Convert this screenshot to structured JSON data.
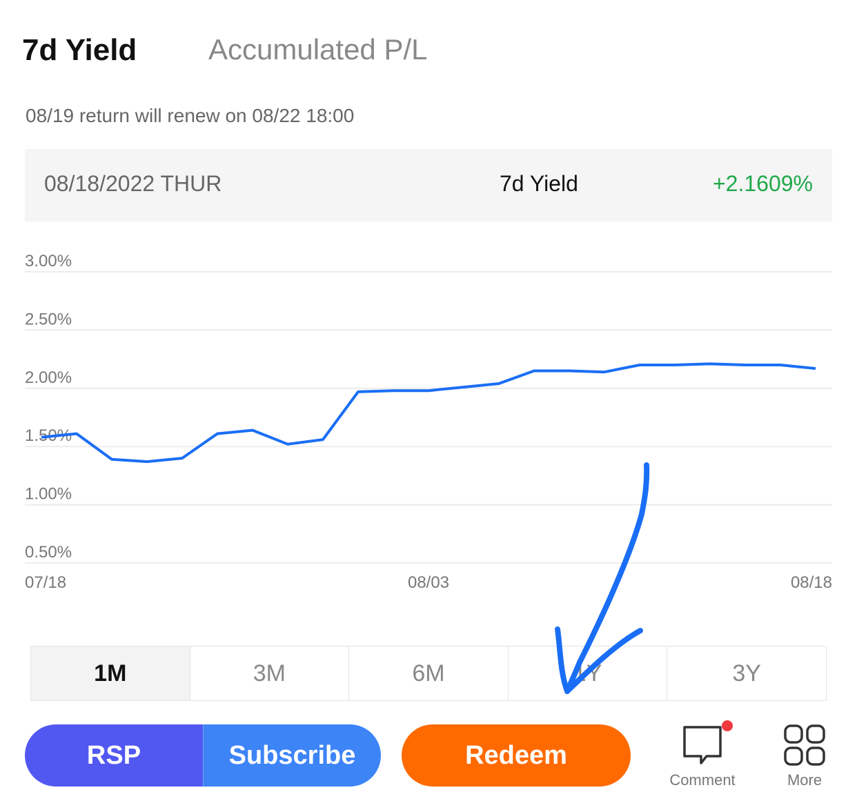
{
  "tabs": {
    "active": "7d Yield",
    "inactive": "Accumulated P/L"
  },
  "notice": "08/19 return will renew on 08/22 18:00",
  "infobar": {
    "date": "08/18/2022 THUR",
    "label": "7d Yield",
    "value": "+2.1609%",
    "value_color": "#20a84a"
  },
  "chart_data": {
    "type": "line",
    "y_ticks": [
      "3.00%",
      "2.50%",
      "2.00%",
      "1.50%",
      "1.00%",
      "0.50%"
    ],
    "x_ticks": [
      "07/18",
      "08/03",
      "08/18"
    ],
    "ylim": [
      0.5,
      3.0
    ],
    "series": [
      {
        "color": "#1a6ef5",
        "values": [
          1.58,
          1.61,
          1.39,
          1.37,
          1.4,
          1.61,
          1.64,
          1.52,
          1.56,
          1.97,
          1.98,
          1.98,
          2.01,
          2.04,
          2.15,
          2.15,
          2.14,
          2.2,
          2.2,
          2.21,
          2.2,
          2.2,
          2.17
        ]
      }
    ],
    "grid": true
  },
  "periods": [
    {
      "label": "1M",
      "active": true
    },
    {
      "label": "3M",
      "active": false
    },
    {
      "label": "6M",
      "active": false
    },
    {
      "label": "1Y",
      "active": false
    },
    {
      "label": "3Y",
      "active": false
    }
  ],
  "actions": {
    "rsp": "RSP",
    "subscribe": "Subscribe",
    "redeem": "Redeem"
  },
  "nav": {
    "comment": "Comment",
    "more": "More",
    "comment_icon": "chat-bubble-icon",
    "more_icon": "grid-icon"
  },
  "colors": {
    "rsp": "#5158f2",
    "subscribe": "#3d84f7",
    "redeem": "#ff6a00",
    "annotation": "#1a6ef5"
  }
}
